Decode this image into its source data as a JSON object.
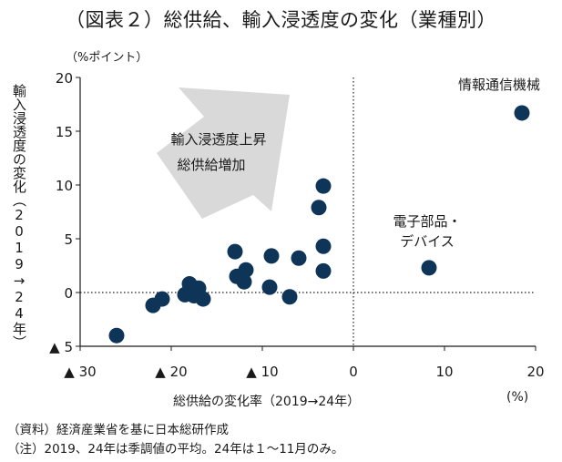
{
  "title": "（図表２）総供給、輸入浸透度の変化（業種別）",
  "y_unit": "（%ポイント）",
  "x_unit": "(%)",
  "y_axis_label": "輸入浸透度の変化（2019→24年）",
  "x_axis_label": "総供給の変化率（2019→24年）",
  "notes": {
    "source": "（資料）経済産業省を基に日本総研作成",
    "note": "（注）2019、24年は季調値の平均。24年は１～11月のみ。"
  },
  "colors": {
    "point": "#0e3458",
    "arrow": "#d9d9d9",
    "axis": "#1a1a1a"
  },
  "chart_data": {
    "type": "scatter",
    "title": "（図表２）総供給、輸入浸透度の変化（業種別）",
    "xlabel": "総供給の変化率（2019→24年）",
    "ylabel": "輸入浸透度の変化（2019→24年）",
    "xlim": [
      -30,
      20
    ],
    "ylim": [
      -5,
      20
    ],
    "x_ticks": [
      -30,
      -20,
      -10,
      0,
      10,
      20
    ],
    "x_tick_labels": [
      "▲ 30",
      "▲ 20",
      "▲ 10",
      "0",
      "10",
      "20"
    ],
    "y_ticks": [
      -5,
      0,
      5,
      10,
      15,
      20
    ],
    "y_tick_labels": [
      "▲ 5",
      "0",
      "5",
      "10",
      "15",
      "20"
    ],
    "grid": false,
    "reference_lines": {
      "x": 0,
      "y": 0
    },
    "points": [
      {
        "x": -26.0,
        "y": -4.0
      },
      {
        "x": -22.0,
        "y": -1.2
      },
      {
        "x": -21.0,
        "y": -0.6
      },
      {
        "x": -18.5,
        "y": -0.2
      },
      {
        "x": -18.0,
        "y": 0.8
      },
      {
        "x": -17.5,
        "y": -0.3
      },
      {
        "x": -17.0,
        "y": 0.4
      },
      {
        "x": -16.5,
        "y": -0.6
      },
      {
        "x": -13.0,
        "y": 3.8
      },
      {
        "x": -12.8,
        "y": 1.5
      },
      {
        "x": -12.0,
        "y": 1.0
      },
      {
        "x": -11.8,
        "y": 2.1
      },
      {
        "x": -9.2,
        "y": 0.5
      },
      {
        "x": -9.0,
        "y": 3.4
      },
      {
        "x": -7.0,
        "y": -0.4
      },
      {
        "x": -6.0,
        "y": 3.2
      },
      {
        "x": -3.8,
        "y": 7.9
      },
      {
        "x": -3.3,
        "y": 9.9
      },
      {
        "x": -3.3,
        "y": 4.3
      },
      {
        "x": -3.3,
        "y": 2.0
      },
      {
        "x": 8.3,
        "y": 2.3,
        "label": "電子部品・デバイス"
      },
      {
        "x": 18.5,
        "y": 16.7,
        "label": "情報通信機械"
      }
    ],
    "annotations": [
      {
        "text": "情報通信機械"
      },
      {
        "text": "電子部品・"
      },
      {
        "text": "デバイス"
      },
      {
        "text": "輸入浸透度上昇"
      },
      {
        "text": "総供給増加"
      }
    ]
  }
}
